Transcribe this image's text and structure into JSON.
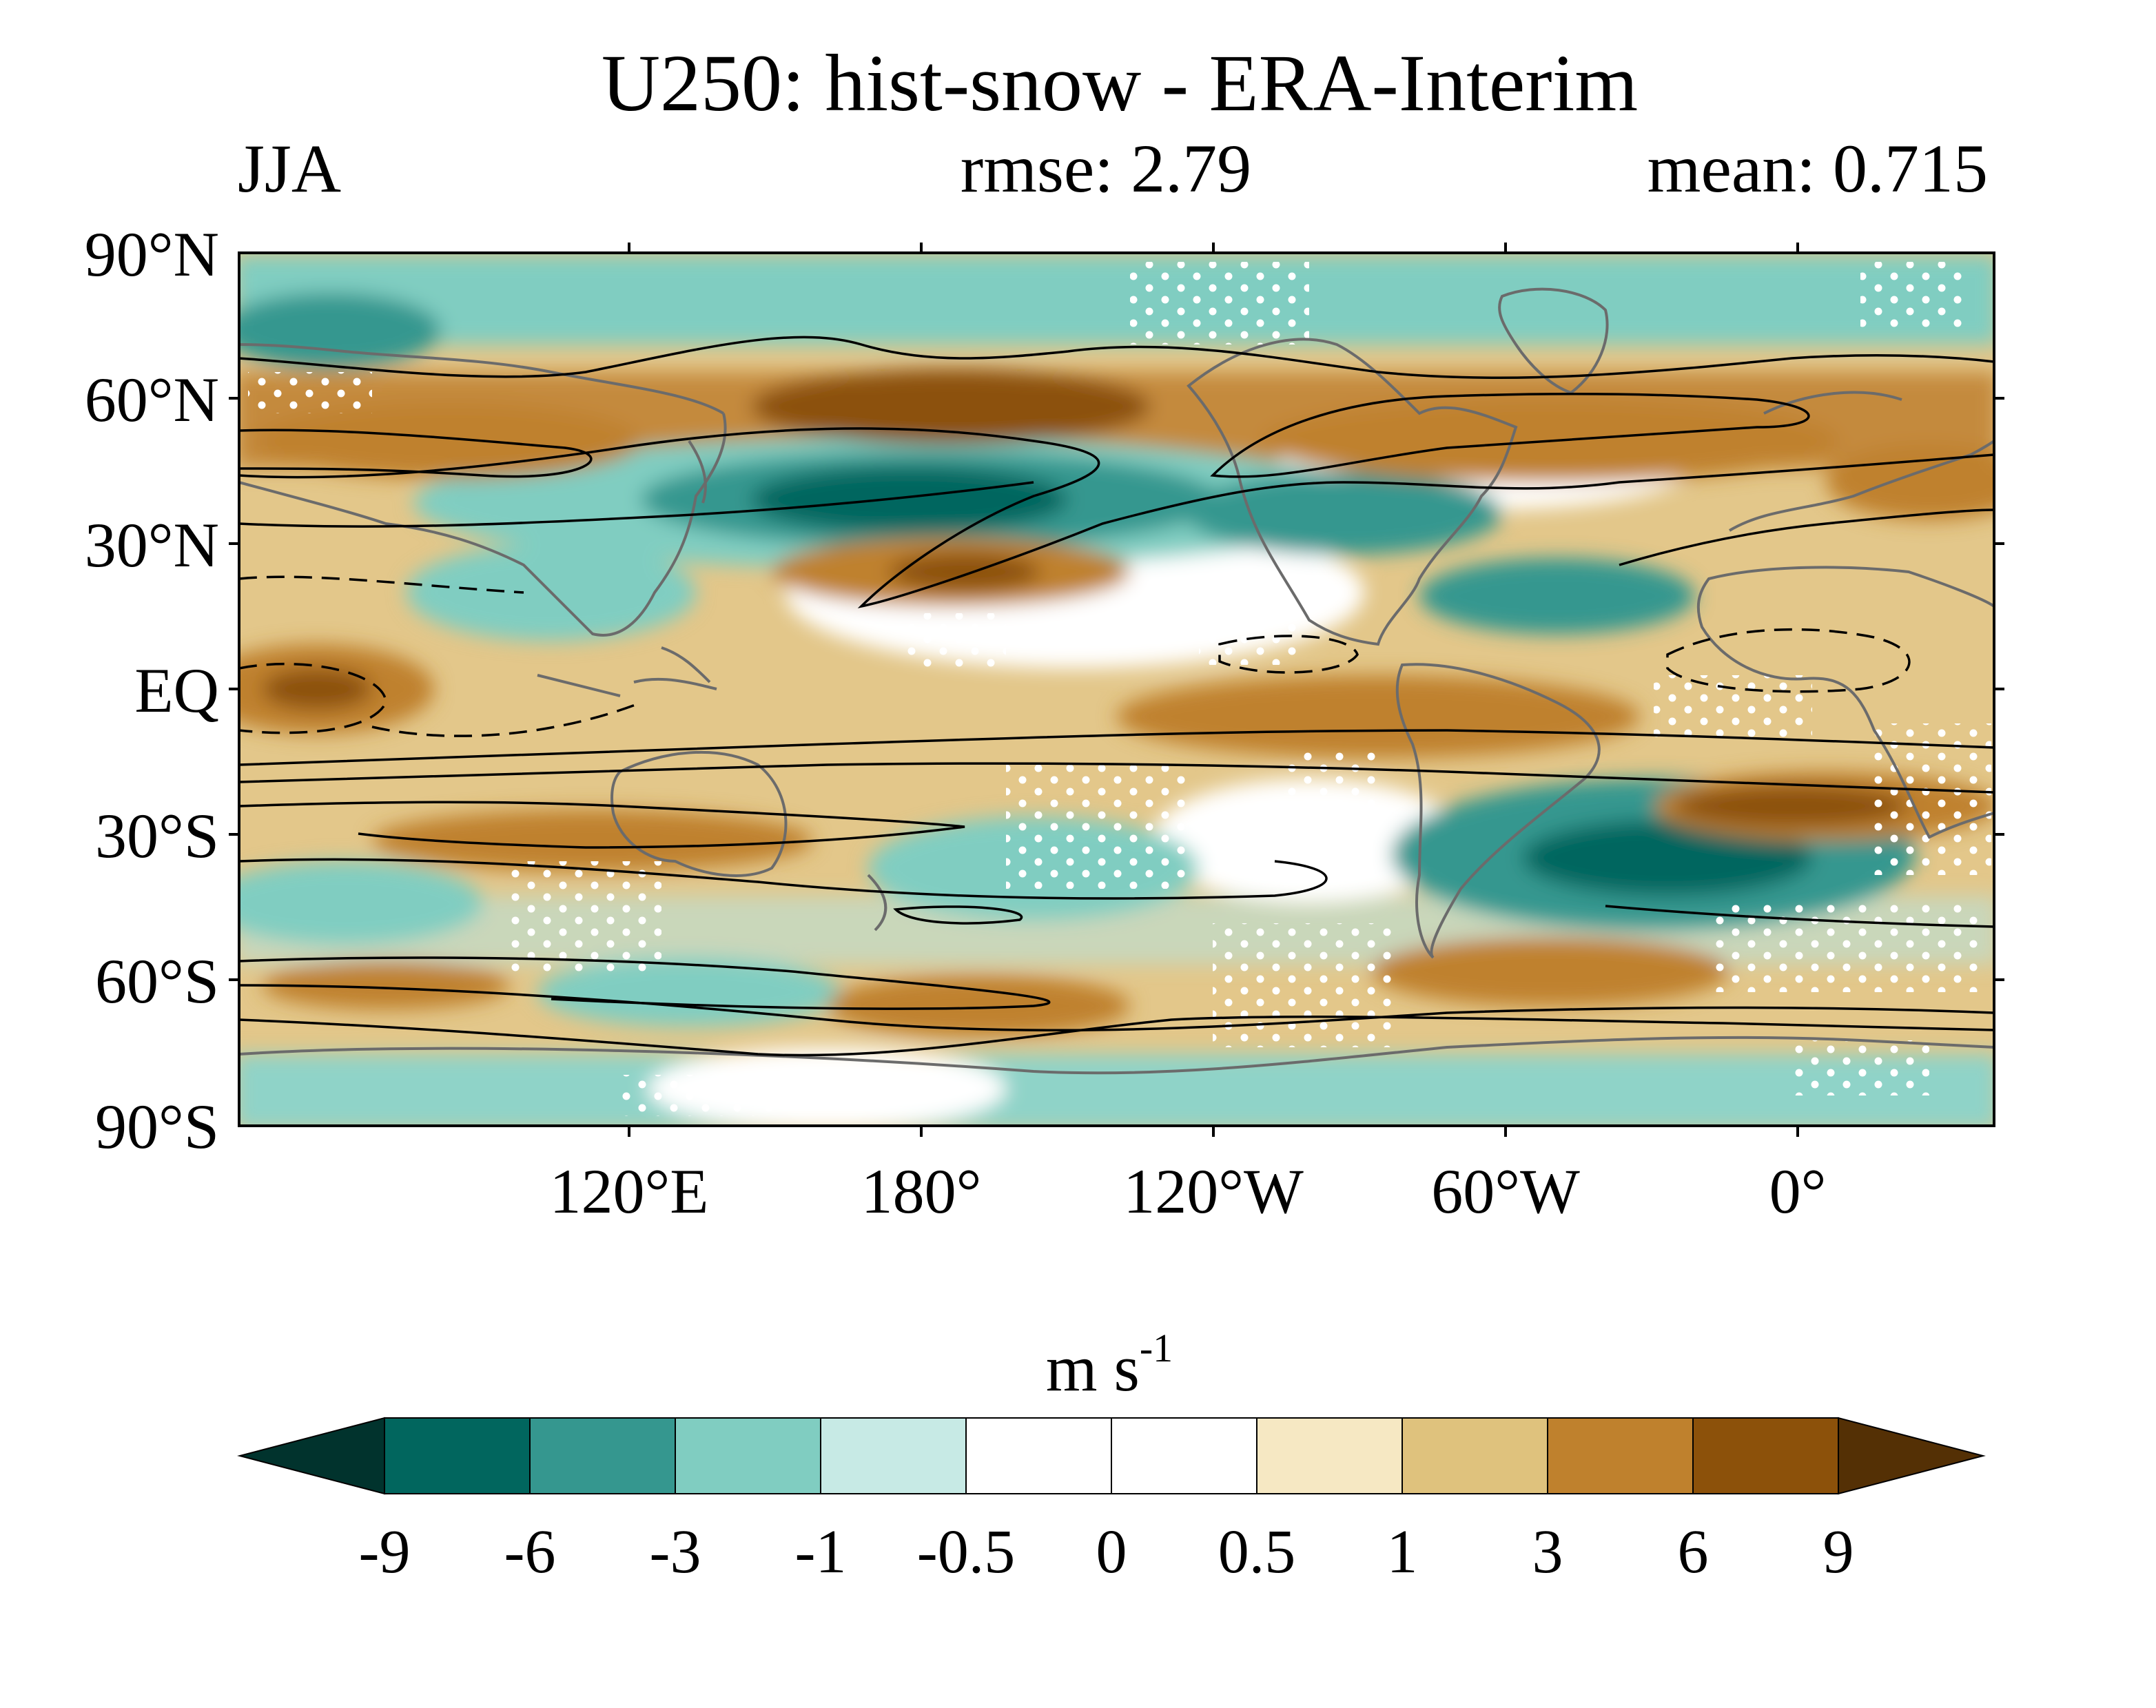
{
  "title": "U250: hist-snow - ERA-Interim",
  "season": "JJA",
  "stats": {
    "rmse_label": "rmse: 2.79",
    "mean_label": "mean: 0.715",
    "rmse": 2.79,
    "mean": 0.715
  },
  "axes": {
    "lat_ticks": [
      "90°N",
      "60°N",
      "30°N",
      "EQ",
      "30°S",
      "60°S",
      "90°S"
    ],
    "lon_ticks": [
      "120°E",
      "180°",
      "120°W",
      "60°W",
      "0°"
    ],
    "lat_range": [
      -90,
      90
    ],
    "lon_range": [
      40,
      400
    ]
  },
  "colorbar": {
    "unit": "m s",
    "unit_exp": "-1",
    "levels": [
      "-9",
      "-6",
      "-3",
      "-1",
      "-0.5",
      "0",
      "0.5",
      "1",
      "3",
      "6",
      "9"
    ],
    "colors": [
      "#01332d",
      "#01665e",
      "#35978f",
      "#80cdc1",
      "#c7eae5",
      "#ffffff",
      "#ffffff",
      "#f6e8c3",
      "#dfc27d",
      "#bf812d",
      "#8c510a",
      "#543005"
    ]
  },
  "map_data": {
    "type": "filled-contour-map",
    "variable": "U250 difference",
    "anomalies": [
      {
        "name": "n-pacific-negative",
        "lon": 180,
        "lat": 41,
        "value": -7
      },
      {
        "name": "s-atlantic-negative",
        "lon": 320,
        "lat": -35,
        "value": -6.5
      },
      {
        "name": "n-atlantic-negative",
        "lon": 305,
        "lat": 37,
        "value": -3.5
      },
      {
        "name": "n-pacific-positive",
        "lon": 193,
        "lat": 24,
        "value": 5
      },
      {
        "name": "w-pacific-positive",
        "lon": 160,
        "lat": 57,
        "value": 4
      },
      {
        "name": "n-atlantic-positive",
        "lon": 285,
        "lat": 53,
        "value": 4
      },
      {
        "name": "s-atlantic-positive",
        "lon": 355,
        "lat": -22,
        "value": 6
      },
      {
        "name": "indian-ocean-positive",
        "lon": 55,
        "lat": 0,
        "value": 6
      },
      {
        "name": "s-pacific-positive",
        "lon": 195,
        "lat": -65,
        "value": 4
      },
      {
        "name": "s-america-positive",
        "lon": 300,
        "lat": -60,
        "value": 3.5
      },
      {
        "name": "australia-positive",
        "lon": 110,
        "lat": -33,
        "value": 4
      }
    ]
  }
}
